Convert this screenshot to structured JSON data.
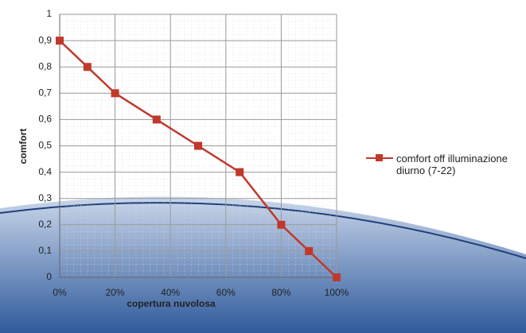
{
  "chart_data": {
    "type": "line",
    "x_label": "copertura nuvolosa",
    "y_label": "comfort",
    "x": [
      0,
      10,
      20,
      35,
      50,
      65,
      80,
      90,
      100
    ],
    "series": [
      {
        "name": "comfort off illuminazione diurno (7-22)",
        "color": "#c0392b",
        "values": [
          0.9,
          0.8,
          0.7,
          0.6,
          0.5,
          0.4,
          0.2,
          0.1,
          0
        ]
      }
    ],
    "xlim": [
      0,
      100
    ],
    "xticks": [
      {
        "value": 0,
        "label": "0%"
      },
      {
        "value": 20,
        "label": "20%"
      },
      {
        "value": 40,
        "label": "40%"
      },
      {
        "value": 60,
        "label": "60%"
      },
      {
        "value": 80,
        "label": "80%"
      },
      {
        "value": 100,
        "label": "100%"
      }
    ],
    "ylim": [
      0,
      1
    ],
    "yticks": [
      0,
      {
        "value": 0.1,
        "label": "0,1"
      },
      {
        "value": 0.2,
        "label": "0,2"
      },
      {
        "value": 0.3,
        "label": "0,3"
      },
      {
        "value": 0.4,
        "label": "0,4"
      },
      {
        "value": 0.5,
        "label": "0,5"
      },
      {
        "value": 0.6,
        "label": "0,6"
      },
      {
        "value": 0.7,
        "label": "0,7"
      },
      {
        "value": 0.8,
        "label": "0,8"
      },
      {
        "value": 0.9,
        "label": "0,9"
      },
      1
    ],
    "grid": true
  }
}
